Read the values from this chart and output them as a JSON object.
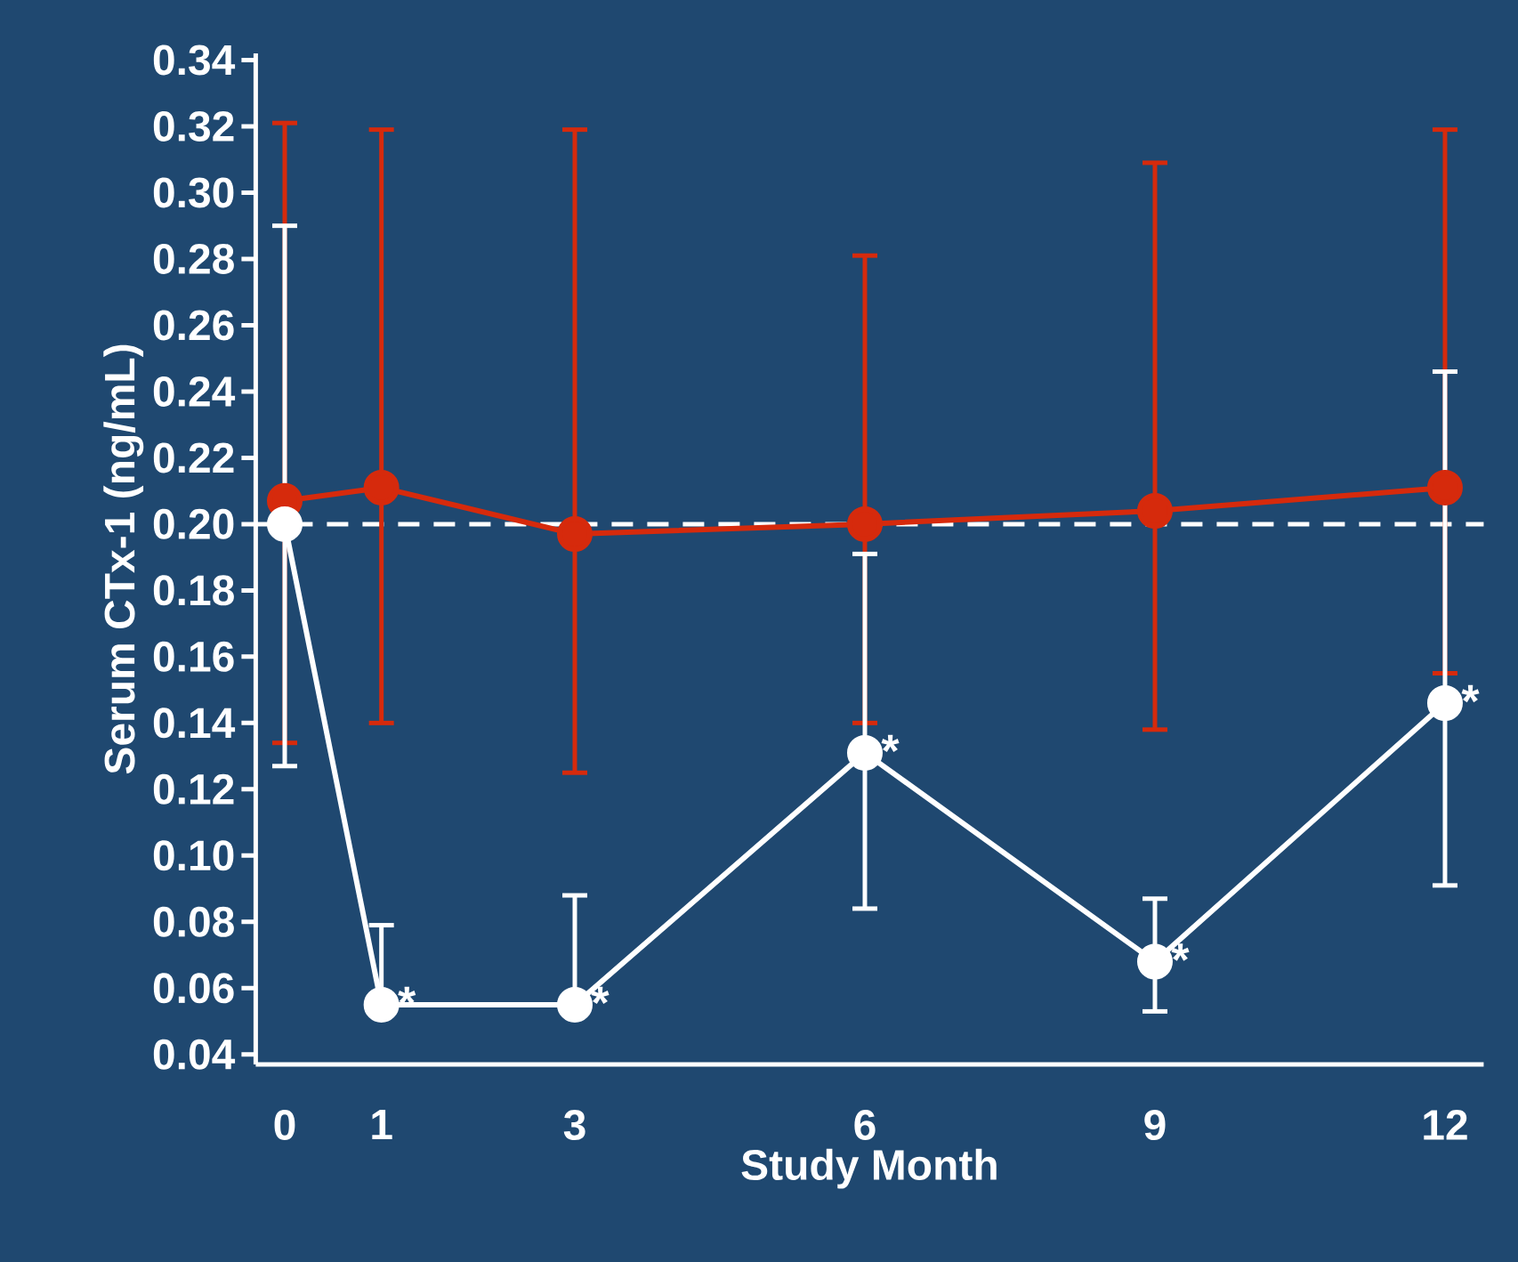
{
  "chart_data": {
    "type": "line",
    "xlabel": "Study Month",
    "ylabel": "Serum CTx-1 (ng/mL)",
    "x": [
      0,
      1,
      3,
      6,
      9,
      12
    ],
    "series": [
      {
        "color": "#d62a0c",
        "values": [
          0.207,
          0.211,
          0.197,
          0.2,
          0.204,
          0.211
        ],
        "errors": [
          [
            0.134,
            0.321
          ],
          [
            0.14,
            0.319
          ],
          [
            0.125,
            0.319
          ],
          [
            0.14,
            0.281
          ],
          [
            0.138,
            0.309
          ],
          [
            0.155,
            0.319
          ]
        ]
      },
      {
        "color": "#ffffff",
        "values": [
          0.2,
          0.055,
          0.055,
          0.131,
          0.068,
          0.146
        ],
        "errors": [
          [
            0.127,
            0.29
          ],
          [
            0.055,
            0.079
          ],
          [
            0.055,
            0.088
          ],
          [
            0.084,
            0.191
          ],
          [
            0.053,
            0.087
          ],
          [
            0.091,
            0.246
          ]
        ]
      }
    ],
    "xlim": [
      -0.3,
      12.4
    ],
    "ylim": [
      0.037,
      0.342
    ],
    "xticks": [
      0,
      1,
      3,
      6,
      9,
      12
    ],
    "yticks": [
      {
        "value": 0.04,
        "label": "0.04"
      },
      {
        "value": 0.06,
        "label": "0.06"
      },
      {
        "value": 0.08,
        "label": "0.08"
      },
      {
        "value": 0.1,
        "label": "0.10"
      },
      {
        "value": 0.12,
        "label": "0.12"
      },
      {
        "value": 0.14,
        "label": "0.14"
      },
      {
        "value": 0.16,
        "label": "0.16"
      },
      {
        "value": 0.18,
        "label": "0.18"
      },
      {
        "value": 0.2,
        "label": "0.20"
      },
      {
        "value": 0.22,
        "label": "0.22"
      },
      {
        "value": 0.24,
        "label": "0.24"
      },
      {
        "value": 0.26,
        "label": "0.26"
      },
      {
        "value": 0.28,
        "label": "0.28"
      },
      {
        "value": 0.3,
        "label": "0.30"
      },
      {
        "value": 0.32,
        "label": "0.32"
      },
      {
        "value": 0.34,
        "label": "0.34"
      }
    ],
    "ref_lines": [
      {
        "axis": "y",
        "value": 0.2,
        "color": "#ffffff",
        "line_style": "dashed"
      }
    ],
    "annotations": [
      {
        "text": "*",
        "x": 1,
        "y": 0.055
      },
      {
        "text": "*",
        "x": 3,
        "y": 0.055
      },
      {
        "text": "*",
        "x": 6,
        "y": 0.131
      },
      {
        "text": "*",
        "x": 9,
        "y": 0.068
      },
      {
        "text": "*",
        "x": 12,
        "y": 0.146
      }
    ],
    "marker": "circle",
    "line_style": "solid"
  }
}
